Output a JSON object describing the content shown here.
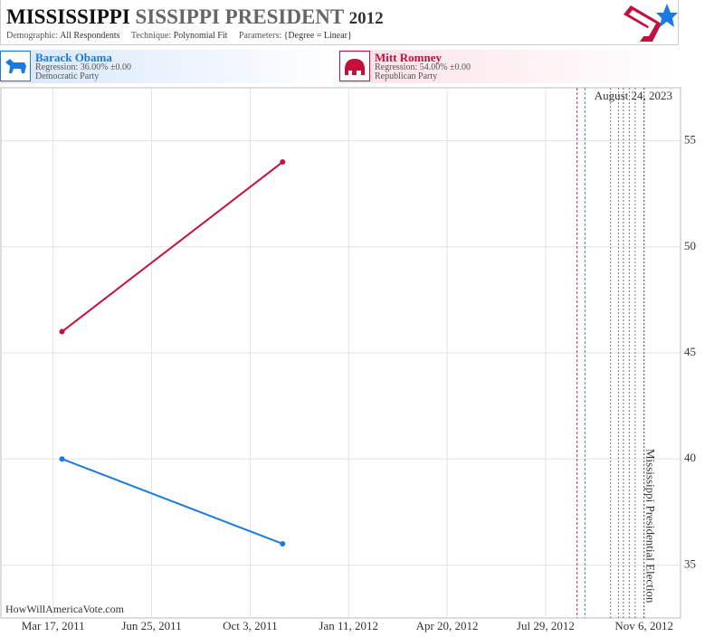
{
  "chart_data": {
    "type": "line",
    "title": [
      "MISSISSIPPI",
      "SISSIPPI PRESIDENT",
      "2012"
    ],
    "subtitle": [
      {
        "label": "Demographic:",
        "value": "All Respondents"
      },
      {
        "label": "Technique:",
        "value": "Polynomial Fit"
      },
      {
        "label": "Parameters:",
        "value": "{Degree = Linear}"
      }
    ],
    "series": [
      {
        "name": "Barack Obama",
        "regression": "Regression: 36.00% ±0.00",
        "party": "Democratic Party",
        "color": "#1a7ae0",
        "x": [
          "2011-03-26",
          "2011-11-05"
        ],
        "values": [
          40,
          36
        ]
      },
      {
        "name": "Mitt Romney",
        "regression": "Regression: 54.00% ±0.00",
        "party": "Republican Party",
        "color": "#c4103c",
        "x": [
          "2011-03-26",
          "2011-11-05"
        ],
        "values": [
          46,
          54
        ]
      }
    ],
    "xlim": [
      "2011-01-23",
      "2012-12-13"
    ],
    "xticks": [
      {
        "value": "2011-03-17",
        "label": "Mar 17, 2011"
      },
      {
        "value": "2011-06-25",
        "label": "Jun 25, 2011"
      },
      {
        "value": "2011-10-03",
        "label": "Oct 3, 2011"
      },
      {
        "value": "2012-01-11",
        "label": "Jan 11, 2012"
      },
      {
        "value": "2012-04-20",
        "label": "Apr 20, 2012"
      },
      {
        "value": "2012-07-29",
        "label": "Jul 29, 2012"
      },
      {
        "value": "2012-11-06",
        "label": "Nov 6, 2012"
      }
    ],
    "ylim": [
      32.5,
      57.5
    ],
    "yticks": [
      35,
      40,
      45,
      50,
      55
    ],
    "grid": true,
    "events": [
      {
        "x": "2012-08-30",
        "color": "#a0307a"
      },
      {
        "x": "2012-09-07",
        "color": "#2e9e8f"
      },
      {
        "x": "2012-10-03",
        "color": "#777777"
      },
      {
        "x": "2012-10-11",
        "color": "#777777"
      },
      {
        "x": "2012-10-16",
        "color": "#777777"
      },
      {
        "x": "2012-10-22",
        "color": "#777777"
      },
      {
        "x": "2012-10-28",
        "color": "#777777"
      },
      {
        "x": "2012-11-06",
        "color": "#555555",
        "label": "Mississippi Presidential Election"
      }
    ],
    "date_note": "August 24, 2023",
    "watermark": "HowWillAmericaVote.com"
  }
}
